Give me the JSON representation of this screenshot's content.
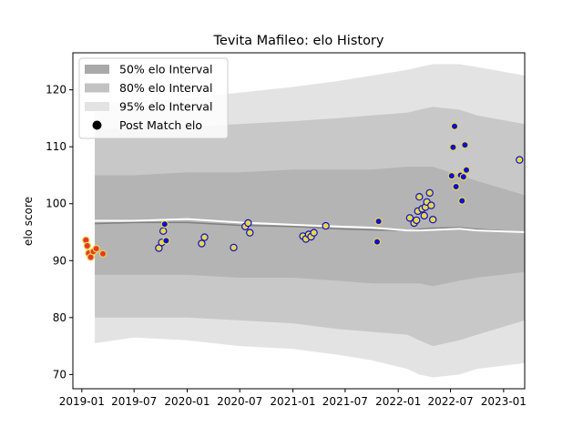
{
  "chart_data": {
    "type": "scatter",
    "title": "Tevita Mafileo: elo History",
    "xlabel": "",
    "ylabel": "elo score",
    "x_ticks": [
      "2019-01",
      "2019-07",
      "2020-01",
      "2020-07",
      "2021-01",
      "2021-07",
      "2022-01",
      "2022-07",
      "2023-01"
    ],
    "y_ticks": [
      70,
      80,
      90,
      100,
      110,
      120
    ],
    "xlim": [
      "2018-12-01",
      "2023-03-15"
    ],
    "ylim": [
      67.5,
      126.5
    ],
    "grid": false,
    "legend": {
      "position": "top-left",
      "entries": [
        {
          "label": "50% elo Interval",
          "kind": "band",
          "color": "#a9a9a9"
        },
        {
          "label": "80% elo Interval",
          "kind": "band",
          "color": "#c2c2c2"
        },
        {
          "label": "95% elo Interval",
          "kind": "band",
          "color": "#e3e3e3"
        },
        {
          "label": "Post Match elo",
          "kind": "marker",
          "color": "#000000"
        }
      ]
    },
    "colors": {
      "band95": "#e3e3e3",
      "band80": "#c8c8c8",
      "band50": "#b4b4b4",
      "mean_line": "#808080",
      "median_line": "#ffffff",
      "point_red": "#e8372a",
      "point_yellow": "#e6d84a",
      "point_blue": "#1010cc"
    },
    "bands": {
      "x": [
        "2019-02-15",
        "2019-07-01",
        "2020-01-01",
        "2020-07-01",
        "2021-01-01",
        "2021-06-01",
        "2021-10-01",
        "2022-02-01",
        "2022-03-15",
        "2022-05-01",
        "2022-08-01",
        "2022-10-01",
        "2023-03-15"
      ],
      "band95_low": [
        75.5,
        76.5,
        76.0,
        75.0,
        74.5,
        73.5,
        72.5,
        71.0,
        70.0,
        69.5,
        70.0,
        71.0,
        72.0
      ],
      "band95_high": [
        117.5,
        118.0,
        118.5,
        119.5,
        120.5,
        121.5,
        122.5,
        123.5,
        124.0,
        124.5,
        124.5,
        124.0,
        122.5
      ],
      "band80_low": [
        80.0,
        80.0,
        80.0,
        79.5,
        79.0,
        78.0,
        77.5,
        77.0,
        76.0,
        75.0,
        76.0,
        77.0,
        79.5
      ],
      "band80_high": [
        113.0,
        113.5,
        113.5,
        114.0,
        114.5,
        115.0,
        115.5,
        116.0,
        116.5,
        117.0,
        116.5,
        115.5,
        114.0
      ],
      "band50_low": [
        87.5,
        87.5,
        87.5,
        87.0,
        87.0,
        86.5,
        86.0,
        86.0,
        86.0,
        85.5,
        86.5,
        87.0,
        88.0
      ],
      "band50_high": [
        105.0,
        105.0,
        105.5,
        105.5,
        106.0,
        106.0,
        106.0,
        106.5,
        106.5,
        106.5,
        105.0,
        104.0,
        101.5
      ],
      "mean": [
        96.5,
        96.7,
        96.7,
        96.2,
        96.0,
        95.6,
        95.4,
        95.3,
        95.5,
        95.7,
        95.8,
        95.5,
        95.0
      ],
      "median": [
        97.0,
        97.0,
        97.3,
        96.7,
        96.3,
        96.0,
        95.8,
        95.3,
        95.3,
        95.4,
        95.6,
        95.3,
        95.0
      ]
    },
    "series": [
      {
        "name": "Post Match elo",
        "points": [
          {
            "x": "2019-01-15",
            "y": 93.6,
            "color": "red"
          },
          {
            "x": "2019-01-20",
            "y": 92.6,
            "color": "red"
          },
          {
            "x": "2019-01-25",
            "y": 91.3,
            "color": "red"
          },
          {
            "x": "2019-02-01",
            "y": 90.6,
            "color": "red"
          },
          {
            "x": "2019-02-10",
            "y": 91.6,
            "color": "red"
          },
          {
            "x": "2019-02-20",
            "y": 92.1,
            "color": "red"
          },
          {
            "x": "2019-03-15",
            "y": 91.2,
            "color": "red"
          },
          {
            "x": "2019-09-25",
            "y": 92.2,
            "color": "yellow"
          },
          {
            "x": "2019-10-05",
            "y": 93.2,
            "color": "yellow"
          },
          {
            "x": "2019-10-10",
            "y": 95.2,
            "color": "yellow"
          },
          {
            "x": "2019-10-15",
            "y": 96.4,
            "color": "blue"
          },
          {
            "x": "2019-10-20",
            "y": 93.5,
            "color": "blue"
          },
          {
            "x": "2020-02-20",
            "y": 93.0,
            "color": "yellow"
          },
          {
            "x": "2020-03-01",
            "y": 94.1,
            "color": "yellow"
          },
          {
            "x": "2020-06-10",
            "y": 92.3,
            "color": "yellow"
          },
          {
            "x": "2020-07-20",
            "y": 96.0,
            "color": "yellow"
          },
          {
            "x": "2020-07-30",
            "y": 96.6,
            "color": "yellow"
          },
          {
            "x": "2020-08-05",
            "y": 94.9,
            "color": "yellow"
          },
          {
            "x": "2021-02-05",
            "y": 94.3,
            "color": "yellow"
          },
          {
            "x": "2021-02-15",
            "y": 93.8,
            "color": "yellow"
          },
          {
            "x": "2021-02-25",
            "y": 94.6,
            "color": "yellow"
          },
          {
            "x": "2021-03-05",
            "y": 94.2,
            "color": "yellow"
          },
          {
            "x": "2021-03-15",
            "y": 94.9,
            "color": "yellow"
          },
          {
            "x": "2021-04-25",
            "y": 96.1,
            "color": "yellow"
          },
          {
            "x": "2021-10-25",
            "y": 96.9,
            "color": "blue"
          },
          {
            "x": "2021-10-20",
            "y": 93.3,
            "color": "blue"
          },
          {
            "x": "2022-02-10",
            "y": 97.5,
            "color": "yellow"
          },
          {
            "x": "2022-02-25",
            "y": 96.6,
            "color": "yellow"
          },
          {
            "x": "2022-03-05",
            "y": 97.1,
            "color": "yellow"
          },
          {
            "x": "2022-03-10",
            "y": 98.7,
            "color": "yellow"
          },
          {
            "x": "2022-03-15",
            "y": 101.2,
            "color": "yellow"
          },
          {
            "x": "2022-03-25",
            "y": 99.1,
            "color": "yellow"
          },
          {
            "x": "2022-04-01",
            "y": 97.9,
            "color": "yellow"
          },
          {
            "x": "2022-04-05",
            "y": 99.4,
            "color": "yellow"
          },
          {
            "x": "2022-04-10",
            "y": 100.3,
            "color": "yellow"
          },
          {
            "x": "2022-04-20",
            "y": 101.9,
            "color": "yellow"
          },
          {
            "x": "2022-04-25",
            "y": 99.7,
            "color": "yellow"
          },
          {
            "x": "2022-05-01",
            "y": 97.2,
            "color": "yellow"
          },
          {
            "x": "2022-07-05",
            "y": 104.9,
            "color": "blue"
          },
          {
            "x": "2022-07-10",
            "y": 109.9,
            "color": "blue"
          },
          {
            "x": "2022-07-15",
            "y": 113.6,
            "color": "blue"
          },
          {
            "x": "2022-07-20",
            "y": 103.0,
            "color": "blue"
          },
          {
            "x": "2022-08-05",
            "y": 105.0,
            "color": "blue"
          },
          {
            "x": "2022-08-10",
            "y": 100.5,
            "color": "blue"
          },
          {
            "x": "2022-08-15",
            "y": 104.7,
            "color": "blue"
          },
          {
            "x": "2022-08-20",
            "y": 110.3,
            "color": "blue"
          },
          {
            "x": "2022-08-25",
            "y": 105.9,
            "color": "blue"
          },
          {
            "x": "2023-02-25",
            "y": 107.7,
            "color": "yellow"
          }
        ]
      }
    ]
  }
}
